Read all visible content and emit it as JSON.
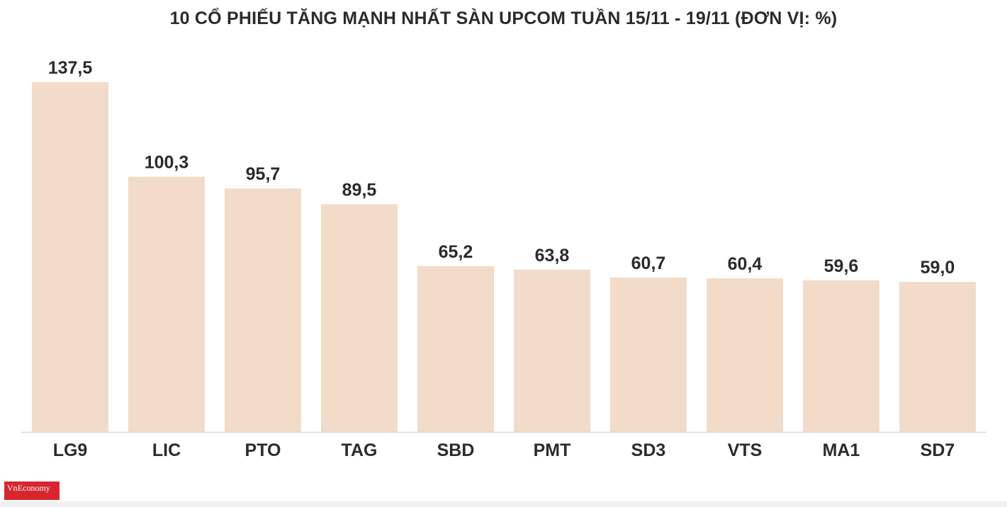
{
  "chart_data": {
    "type": "bar",
    "title": "10 CỔ PHIẾU TĂNG MẠNH NHẤT SÀN UPCOM TUẦN 15/11 - 19/11 (ĐƠN VỊ: %)",
    "categories": [
      "LG9",
      "LIC",
      "PTO",
      "TAG",
      "SBD",
      "PMT",
      "SD3",
      "VTS",
      "MA1",
      "SD7"
    ],
    "values": [
      137.5,
      100.3,
      95.7,
      89.5,
      65.2,
      63.8,
      60.7,
      60.4,
      59.6,
      59.0
    ],
    "value_labels": [
      "137,5",
      "100,3",
      "95,7",
      "89,5",
      "65,2",
      "63,8",
      "60,7",
      "60,4",
      "59,6",
      "59,0"
    ],
    "xlabel": "",
    "ylabel": "",
    "ylim": [
      0,
      137.5
    ],
    "grid": false,
    "bar_color": "#f2dcc9"
  },
  "logo": {
    "text": "VnEconomy"
  }
}
